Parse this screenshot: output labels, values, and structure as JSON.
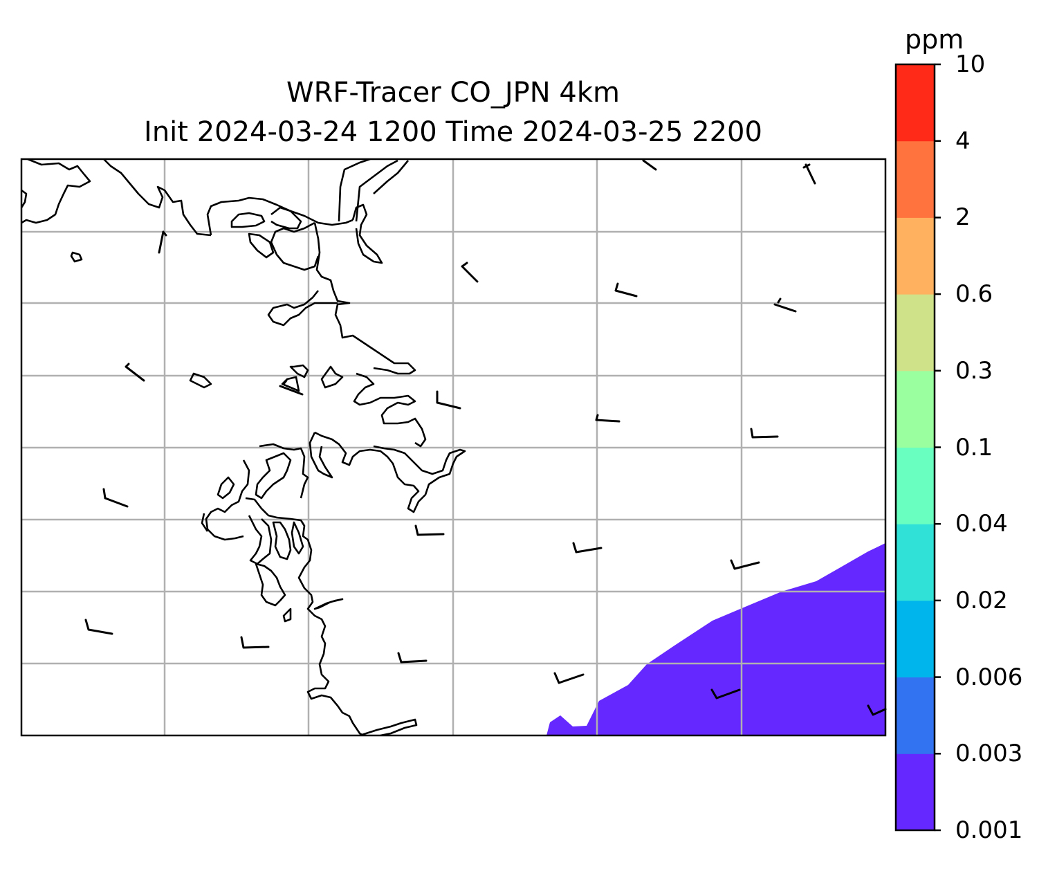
{
  "title": {
    "line1": "WRF-Tracer CO_JPN 4km",
    "line2": "Init 2024-03-24 1200 Time 2024-03-25 2200"
  },
  "colorbar": {
    "unit": "ppm",
    "levels": [
      "0.001",
      "0.003",
      "0.006",
      "0.02",
      "0.04",
      "0.1",
      "0.3",
      "0.6",
      "2",
      "4",
      "10"
    ],
    "colors": [
      "#6528ff",
      "#3273f2",
      "#00b5ec",
      "#30e1d7",
      "#69ffc1",
      "#9aff9e",
      "#cfe28a",
      "#ffb160",
      "#ff733f",
      "#ff2a18"
    ]
  },
  "map": {
    "plume_color": "#6528ff",
    "gridline_color": "#b0b0b0",
    "coastline_color": "#000000"
  }
}
